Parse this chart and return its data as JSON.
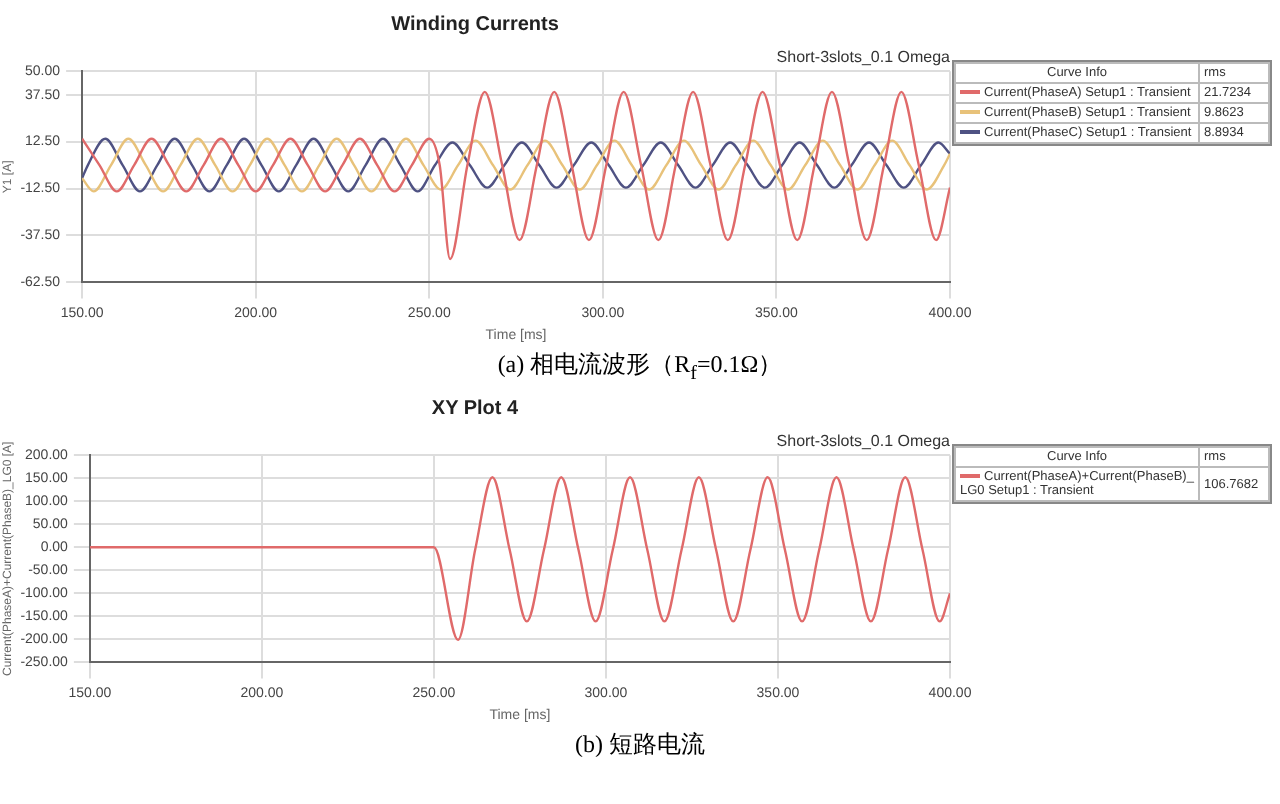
{
  "chart_data": [
    {
      "type": "line",
      "title": "Winding Currents",
      "subtitle": "Short-3slots_0.1 Omega",
      "xlabel": "Time [ms]",
      "ylabel": "Y1 [A]",
      "legend_title": "Curve Info",
      "legend": "right",
      "grid": true,
      "marker": "none",
      "line_style": "solid",
      "xlim": [
        150,
        400
      ],
      "xticks": [
        {
          "value": 150,
          "label": "150.00"
        },
        {
          "value": 200,
          "label": "200.00"
        },
        {
          "value": 250,
          "label": "250.00"
        },
        {
          "value": 300,
          "label": "300.00"
        },
        {
          "value": 350,
          "label": "350.00"
        },
        {
          "value": 400,
          "label": "400.00"
        }
      ],
      "ylim": [
        -62.5,
        50
      ],
      "yticks": [
        {
          "value": -62.5,
          "label": "-62.50"
        },
        {
          "value": -37.5,
          "label": "-37.50"
        },
        {
          "value": -12.5,
          "label": "-12.50"
        },
        {
          "value": 12.5,
          "label": "12.50"
        },
        {
          "value": 37.5,
          "label": "37.50"
        },
        {
          "value": 50,
          "label": "50.00"
        }
      ],
      "annotations": [
        "rms",
        "21.7234",
        "9.8623",
        "8.8934",
        "(a) 相电流波形（R$_{f}$=0.1Ω）"
      ],
      "series": [
        {
          "name": "Current(PhaseA) Setup1 : Transient",
          "color": "#e06a6a",
          "x": [
            150,
            155,
            160,
            165,
            170,
            175,
            180,
            185,
            190,
            195,
            200,
            205,
            210,
            215,
            220,
            225,
            230,
            235,
            240,
            245,
            250,
            253,
            256,
            261,
            266,
            271,
            276,
            281,
            286,
            291,
            296,
            301,
            306,
            311,
            316,
            321,
            326,
            331,
            336,
            341,
            346,
            351,
            356,
            361,
            366,
            371,
            376,
            381,
            386,
            391,
            396,
            400
          ],
          "values": [
            14,
            0,
            -14,
            0,
            14,
            0,
            -14,
            0,
            14,
            0,
            -14,
            0,
            14,
            0,
            -14,
            0,
            14,
            0,
            -14,
            0,
            14,
            0,
            -50,
            0,
            39,
            0,
            -40,
            0,
            39,
            0,
            -40,
            0,
            39,
            0,
            -40,
            0,
            39,
            0,
            -40,
            0,
            39,
            0,
            -40,
            0,
            39,
            0,
            -40,
            0,
            39,
            0,
            -40,
            -12
          ]
        },
        {
          "name": "Current(PhaseB) Setup1 : Transient",
          "color": "#e8c27a",
          "x": [
            150,
            153.33,
            158.33,
            163.33,
            168.33,
            173.33,
            178.33,
            183.33,
            188.33,
            193.33,
            198.33,
            203.33,
            208.33,
            213.33,
            218.33,
            223.33,
            228.33,
            233.33,
            238.33,
            243.33,
            248.33,
            253.33,
            258.33,
            263.33,
            268.33,
            273.33,
            278.33,
            283.33,
            288.33,
            293.33,
            298.33,
            303.33,
            308.33,
            313.33,
            318.33,
            323.33,
            328.33,
            333.33,
            338.33,
            343.33,
            348.33,
            353.33,
            358.33,
            363.33,
            368.33,
            373.33,
            378.33,
            383.33,
            388.33,
            393.33,
            398.33,
            400
          ],
          "values": [
            -7,
            -14,
            0,
            14,
            0,
            -14,
            0,
            14,
            0,
            -14,
            0,
            14,
            0,
            -14,
            0,
            14,
            0,
            -14,
            0,
            14,
            0,
            -13,
            0,
            13,
            0,
            -13,
            0,
            13,
            0,
            -13,
            0,
            13,
            0,
            -13,
            0,
            13,
            0,
            -13,
            0,
            13,
            0,
            -13,
            0,
            13,
            0,
            -13,
            0,
            13,
            0,
            -13,
            0,
            6
          ]
        },
        {
          "name": "Current(PhaseC) Setup1 : Transient",
          "color": "#4f5283",
          "x": [
            150,
            151.67,
            156.67,
            161.67,
            166.67,
            171.67,
            176.67,
            181.67,
            186.67,
            191.67,
            196.67,
            201.67,
            206.67,
            211.67,
            216.67,
            221.67,
            226.67,
            231.67,
            236.67,
            241.67,
            246.67,
            251.67,
            256.67,
            261.67,
            266.67,
            271.67,
            276.67,
            281.67,
            286.67,
            291.67,
            296.67,
            301.67,
            306.67,
            311.67,
            316.67,
            321.67,
            326.67,
            331.67,
            336.67,
            341.67,
            346.67,
            351.67,
            356.67,
            361.67,
            366.67,
            371.67,
            376.67,
            381.67,
            386.67,
            391.67,
            396.67,
            400
          ],
          "values": [
            -7,
            0,
            14,
            0,
            -14,
            0,
            14,
            0,
            -14,
            0,
            14,
            0,
            -14,
            0,
            14,
            0,
            -14,
            0,
            14,
            0,
            -14,
            0,
            12,
            0,
            -12,
            0,
            12,
            0,
            -12,
            0,
            12,
            0,
            -12,
            0,
            12,
            0,
            -12,
            0,
            12,
            0,
            -12,
            0,
            12,
            0,
            -12,
            0,
            12,
            0,
            -12,
            0,
            12,
            6
          ]
        }
      ]
    },
    {
      "type": "line",
      "title": "XY Plot 4",
      "subtitle": "Short-3slots_0.1 Omega",
      "xlabel": "Time [ms]",
      "ylabel": "Current(PhaseA)+Current(PhaseB)_LG0 [A]",
      "legend_title": "Curve Info",
      "legend": "right",
      "grid": true,
      "marker": "none",
      "line_style": "solid",
      "xlim": [
        150,
        400
      ],
      "xticks": [
        {
          "value": 150,
          "label": "150.00"
        },
        {
          "value": 200,
          "label": "200.00"
        },
        {
          "value": 250,
          "label": "250.00"
        },
        {
          "value": 300,
          "label": "300.00"
        },
        {
          "value": 350,
          "label": "350.00"
        },
        {
          "value": 400,
          "label": "400.00"
        }
      ],
      "ylim": [
        -250,
        200
      ],
      "yticks": [
        {
          "value": -250,
          "label": "-250.00"
        },
        {
          "value": -200,
          "label": "-200.00"
        },
        {
          "value": -150,
          "label": "-150.00"
        },
        {
          "value": -100,
          "label": "-100.00"
        },
        {
          "value": -50,
          "label": "-50.00"
        },
        {
          "value": 0,
          "label": "0.00"
        },
        {
          "value": 50,
          "label": "50.00"
        },
        {
          "value": 100,
          "label": "100.00"
        },
        {
          "value": 150,
          "label": "150.00"
        },
        {
          "value": 200,
          "label": "200.00"
        }
      ],
      "annotations": [
        "rms",
        "106.7682",
        "(b) 短路电流"
      ],
      "series": [
        {
          "name": "Current(PhaseA)+Current(PhaseB)_LG0 Setup1 : Transient",
          "color": "#e06a6a",
          "x": [
            150,
            250,
            257,
            262,
            267,
            272,
            277,
            282,
            287,
            292,
            297,
            302,
            307,
            312,
            317,
            322,
            327,
            332,
            337,
            342,
            347,
            352,
            357,
            362,
            367,
            372,
            377,
            382,
            387,
            392,
            397,
            400
          ],
          "values": [
            0,
            0,
            -201,
            -5,
            152,
            -5,
            -161,
            -5,
            152,
            -5,
            -161,
            -5,
            152,
            -5,
            -161,
            -5,
            152,
            -5,
            -161,
            -5,
            152,
            -5,
            -161,
            -5,
            152,
            -5,
            -161,
            -5,
            152,
            -5,
            -161,
            -100
          ]
        }
      ]
    }
  ]
}
